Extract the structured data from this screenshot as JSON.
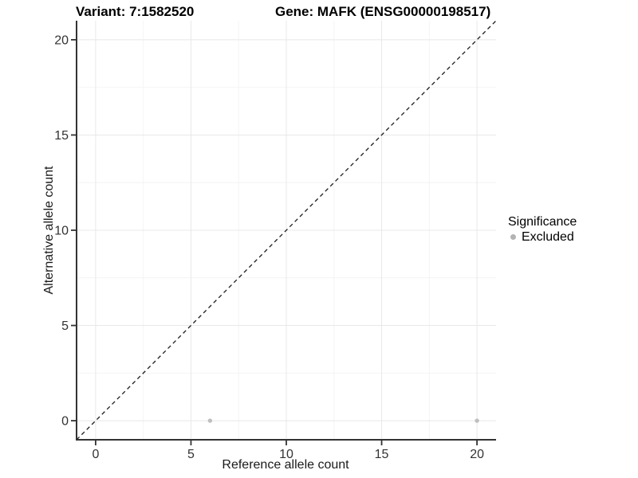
{
  "titles": {
    "variant": "Variant: 7:1582520",
    "gene": "Gene: MAFK (ENSG00000198517)"
  },
  "legend": {
    "title": "Significance",
    "items": [
      {
        "label": "Excluded",
        "color": "#b3b3b3"
      }
    ]
  },
  "chart_data": {
    "type": "scatter",
    "title": "Variant: 7:1582520 | Gene: MAFK (ENSG00000198517)",
    "xlabel": "Reference allele count",
    "ylabel": "Alternative allele count",
    "xlim": [
      -1,
      21
    ],
    "ylim": [
      -1,
      21
    ],
    "x_ticks": [
      0,
      5,
      10,
      15,
      20
    ],
    "y_ticks": [
      0,
      5,
      10,
      15,
      20
    ],
    "grid": {
      "major": true,
      "minor": true,
      "major_color": "#e8e8e8",
      "minor_color": "#f4f4f4"
    },
    "legend_position": "right",
    "series": [
      {
        "name": "Excluded",
        "color": "#bfbfbf",
        "points": [
          {
            "x": 6,
            "y": 0
          },
          {
            "x": 20,
            "y": 0
          }
        ]
      }
    ],
    "reference_line": {
      "shape": "identity y=x",
      "style": "dashed",
      "color": "#1a1a1a",
      "from": [
        -1,
        -1
      ],
      "to": [
        21,
        21
      ]
    },
    "colors": {
      "axis_line": "#333333",
      "tick_label": "#333333",
      "axis_label": "#1a1a1a",
      "title": "#000000"
    }
  }
}
